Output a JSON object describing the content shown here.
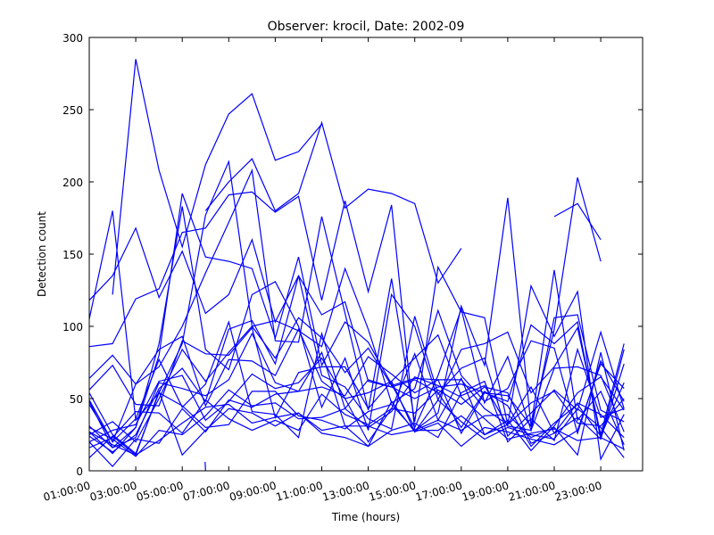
{
  "chart_data": {
    "type": "line",
    "title": "Observer: krocil, Date: 2002-09",
    "xlabel": "Time (hours)",
    "ylabel": "Detection count",
    "x": [
      1,
      2,
      3,
      4,
      5,
      6,
      7,
      8,
      9,
      10,
      11,
      12,
      13,
      14,
      15,
      16,
      17,
      18,
      19,
      20,
      21,
      22,
      23,
      24
    ],
    "x_ticks": [
      1,
      3,
      5,
      7,
      9,
      11,
      13,
      15,
      17,
      19,
      21,
      23
    ],
    "x_tick_labels": [
      "01:00:00",
      "03:00:00",
      "05:00:00",
      "07:00:00",
      "09:00:00",
      "11:00:00",
      "13:00:00",
      "15:00:00",
      "17:00:00",
      "19:00:00",
      "21:00:00",
      "23:00:00"
    ],
    "xlim": [
      1,
      24.8
    ],
    "ylim": [
      0,
      300
    ],
    "y_ticks": [
      0,
      50,
      100,
      150,
      200,
      250,
      300
    ],
    "grid": false,
    "line_color": "#0000ff",
    "series": [
      {
        "values": [
          118,
          135,
          168,
          120,
          152,
          109,
          122,
          160,
          103,
          135,
          108,
          117,
          62,
          58,
          50,
          58,
          60,
          54,
          48,
          101,
          88,
          103,
          22,
          84
        ]
      },
      {
        "values": [
          null,
          122,
          285,
          208,
          155,
          212,
          247,
          261,
          215,
          221,
          240,
          null,
          null,
          null,
          null,
          null,
          null,
          null,
          null,
          null,
          null,
          null,
          null,
          null
        ]
      },
      {
        "values": [
          null,
          null,
          null,
          null,
          null,
          180,
          200,
          216,
          180,
          192,
          241,
          182,
          195,
          192,
          185,
          130,
          154,
          null,
          null,
          null,
          null,
          null,
          null,
          null
        ]
      },
      {
        "values": [
          null,
          null,
          null,
          null,
          null,
          null,
          null,
          null,
          null,
          null,
          null,
          null,
          null,
          null,
          null,
          null,
          null,
          null,
          null,
          null,
          176,
          185,
          160,
          null
        ]
      },
      {
        "values": [
          86,
          88,
          119,
          126,
          165,
          168,
          191,
          193,
          179,
          190,
          118,
          187,
          124,
          184,
          28,
          40,
          114,
          73,
          189,
          31,
          98,
          203,
          145,
          null
        ]
      },
      {
        "values": [
          64,
          80,
          60,
          72,
          100,
          137,
          172,
          208,
          90,
          89,
          176,
          109,
          42,
          133,
          34,
          141,
          110,
          106,
          32,
          128,
          93,
          124,
          8,
          39
        ]
      },
      {
        "values": [
          48,
          16,
          30,
          80,
          192,
          148,
          145,
          140,
          92,
          148,
          73,
          103,
          89,
          60,
          30,
          66,
          112,
          47,
          79,
          28,
          106,
          108,
          42,
          34
        ]
      },
      {
        "values": [
          27,
          12,
          30,
          88,
          183,
          84,
          70,
          122,
          131,
          100,
          44,
          78,
          28,
          122,
          100,
          49,
          84,
          88,
          96,
          54,
          72,
          99,
          25,
          88
        ]
      },
      {
        "values": [
          105,
          180,
          35,
          54,
          88,
          177,
          214,
          100,
          104,
          97,
          86,
          140,
          98,
          47,
          57,
          111,
          66,
          48,
          57,
          90,
          85,
          26,
          76,
          48
        ]
      },
      {
        "values": [
          25,
          34,
          20,
          50,
          84,
          62,
          82,
          100,
          78,
          106,
          92,
          68,
          85,
          59,
          64,
          63,
          26,
          54,
          52,
          31,
          139,
          35,
          55,
          18
        ]
      },
      {
        "values": [
          24,
          13,
          25,
          57,
          71,
          48,
          98,
          104,
          74,
          135,
          66,
          58,
          36,
          29,
          107,
          53,
          71,
          78,
          24,
          40,
          56,
          42,
          96,
          43
        ]
      },
      {
        "values": [
          56,
          73,
          46,
          45,
          90,
          81,
          80,
          99,
          37,
          68,
          72,
          72,
          43,
          62,
          78,
          94,
          52,
          59,
          31,
          28,
          71,
          72,
          66,
          27
        ]
      },
      {
        "values": [
          31,
          16,
          23,
          61,
          57,
          52,
          63,
          95,
          61,
          55,
          58,
          52,
          79,
          67,
          54,
          63,
          63,
          43,
          32,
          58,
          26,
          47,
          39,
          23
        ]
      },
      {
        "values": [
          49,
          20,
          60,
          84,
          93,
          45,
          77,
          76,
          66,
          98,
          62,
          50,
          54,
          62,
          27,
          49,
          34,
          22,
          30,
          25,
          22,
          43,
          30,
          9
        ]
      },
      {
        "values": [
          20,
          28,
          32,
          62,
          66,
          35,
          48,
          67,
          57,
          61,
          78,
          50,
          20,
          43,
          81,
          35,
          64,
          25,
          35,
          14,
          31,
          54,
          65,
          42
        ]
      },
      {
        "values": [
          30,
          22,
          10,
          28,
          25,
          38,
          56,
          45,
          47,
          36,
          37,
          43,
          63,
          58,
          63,
          54,
          30,
          55,
          45,
          17,
          33,
          46,
          24,
          61
        ]
      },
      {
        "values": [
          16,
          23,
          41,
          40,
          26,
          49,
          36,
          28,
          35,
          28,
          53,
          39,
          32,
          43,
          40,
          56,
          46,
          58,
          54,
          19,
          26,
          37,
          22,
          74
        ]
      },
      {
        "values": [
          20,
          3,
          22,
          19,
          43,
          27,
          49,
          44,
          53,
          55,
          82,
          31,
          17,
          48,
          27,
          33,
          17,
          30,
          27,
          22,
          18,
          28,
          74,
          57
        ]
      },
      {
        "values": [
          9,
          24,
          11,
          21,
          33,
          44,
          46,
          33,
          37,
          40,
          26,
          23,
          17,
          28,
          33,
          23,
          54,
          62,
          20,
          36,
          21,
          84,
          37,
          43
        ]
      },
      {
        "values": [
          46,
          20,
          36,
          77,
          44,
          60,
          103,
          41,
          39,
          23,
          95,
          43,
          30,
          41,
          65,
          59,
          51,
          36,
          22,
          26,
          29,
          21,
          23,
          15
        ]
      },
      {
        "values": [
          27,
          18,
          11,
          55,
          11,
          28,
          43,
          40,
          31,
          40,
          28,
          31,
          31,
          25,
          28,
          28,
          38,
          25,
          32,
          47,
          55,
          33,
          31,
          50
        ]
      },
      {
        "values": [
          54,
          25,
          12,
          54,
          45,
          30,
          32,
          55,
          55,
          38,
          35,
          29,
          41,
          46,
          28,
          35,
          28,
          38,
          39,
          23,
          30,
          11,
          82,
          14
        ]
      },
      {
        "values": [
          null,
          null,
          null,
          null,
          null,
          0,
          null,
          null,
          null,
          null,
          null,
          null,
          null,
          null,
          null,
          null,
          null,
          null,
          null,
          null,
          null,
          null,
          null,
          null
        ]
      }
    ]
  }
}
